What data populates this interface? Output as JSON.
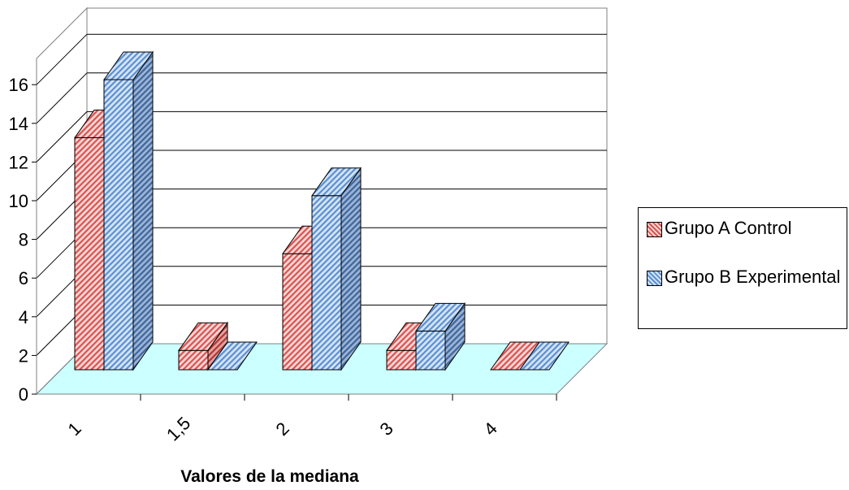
{
  "chart_data": {
    "type": "bar",
    "title": "",
    "xlabel": "Valores de la mediana",
    "ylabel": "",
    "categories": [
      "1",
      "1,5",
      "2",
      "3",
      "4"
    ],
    "ylim": [
      0,
      16
    ],
    "yticks": [
      "0",
      "2",
      "4",
      "6",
      "8",
      "10",
      "12",
      "14",
      "16"
    ],
    "grid": true,
    "style": "3d-clustered",
    "legend_position": "right",
    "series": [
      {
        "name": "Grupo A Control",
        "values": [
          12,
          1,
          6,
          1,
          0
        ],
        "color": "#d9534f",
        "pattern": "diagonal-hatch"
      },
      {
        "name": "Grupo B Experimental",
        "values": [
          15,
          0,
          9,
          2,
          0
        ],
        "color": "#5b8fd1",
        "pattern": "diagonal-hatch"
      }
    ],
    "floor_color": "#ccffff"
  }
}
